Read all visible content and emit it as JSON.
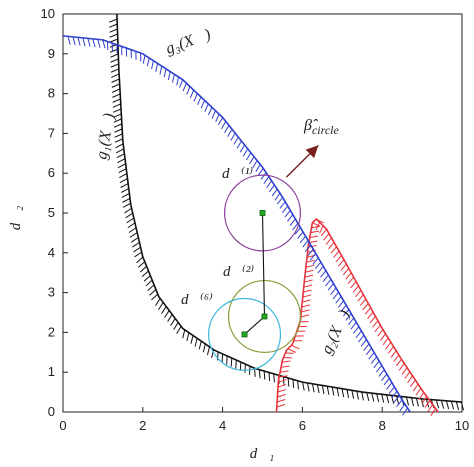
{
  "chart_data": {
    "type": "line",
    "xlabel": "d⃗₁",
    "ylabel": "d⃗₂",
    "xlim": [
      0,
      10
    ],
    "ylim": [
      0,
      10
    ],
    "x_ticks": [
      0,
      2,
      4,
      6,
      8,
      10
    ],
    "y_ticks": [
      0,
      1,
      2,
      3,
      4,
      5,
      6,
      7,
      8,
      9,
      10
    ],
    "grid": false,
    "series": [
      {
        "name": "g₁(X⃗)",
        "color": "#111111",
        "x": [
          1.35,
          1.4,
          1.5,
          1.7,
          2.0,
          2.4,
          3.0,
          3.8,
          4.8,
          6.0,
          7.5,
          9.0,
          10.0
        ],
        "y": [
          10.0,
          8.6,
          6.8,
          5.2,
          3.9,
          2.9,
          2.1,
          1.55,
          1.1,
          0.75,
          0.5,
          0.33,
          0.25
        ]
      },
      {
        "name": "g₂(X⃗)",
        "color": "#e8333b",
        "x": [
          5.35,
          5.4,
          5.5,
          5.6,
          5.75,
          5.95,
          6.05,
          6.15,
          6.25,
          6.35,
          6.6,
          7.0,
          7.5,
          8.0,
          8.5,
          9.0,
          9.4
        ],
        "y": [
          0.0,
          0.8,
          1.3,
          1.55,
          1.7,
          2.3,
          3.3,
          4.2,
          4.75,
          4.85,
          4.6,
          3.9,
          3.0,
          2.1,
          1.3,
          0.55,
          0.0
        ]
      },
      {
        "name": "g₃(X⃗)",
        "color": "#2f3fcf",
        "x": [
          0,
          1.0,
          2.0,
          3.0,
          4.0,
          5.0,
          5.5,
          6.0,
          6.5,
          7.0,
          7.5,
          8.0,
          8.5,
          8.7
        ],
        "y": [
          9.45,
          9.35,
          9.0,
          8.35,
          7.4,
          6.15,
          5.4,
          4.55,
          3.7,
          2.85,
          2.0,
          1.15,
          0.3,
          0.0
        ]
      }
    ],
    "path": {
      "color": "#111111",
      "marker_color": "#22aa22",
      "points": [
        {
          "x": 5.0,
          "y": 5.0
        },
        {
          "x": 5.05,
          "y": 2.4
        },
        {
          "x": 4.55,
          "y": 1.95
        }
      ]
    },
    "circles": [
      {
        "cx": 5.0,
        "cy": 5.0,
        "r": 0.95,
        "color": "#8a3c9a"
      },
      {
        "cx": 5.05,
        "cy": 2.4,
        "r": 0.9,
        "color": "#8e9a3a"
      },
      {
        "cx": 4.55,
        "cy": 1.95,
        "r": 0.9,
        "color": "#3ab7dd"
      }
    ],
    "arrow": {
      "from": [
        5.6,
        5.9
      ],
      "to": [
        6.4,
        6.7
      ],
      "color": "#7a1f1f"
    },
    "annotations": {
      "g1": "g₁(X⃗)",
      "g2": "g₂(X⃗)",
      "g3": "g₃(X⃗)",
      "beta": "β̂",
      "beta_sub": "circle",
      "d1": "d⃗⁽¹⁾",
      "d2": "d⃗⁽²⁾",
      "d6": "d⃗⁽⁶⁾"
    }
  }
}
